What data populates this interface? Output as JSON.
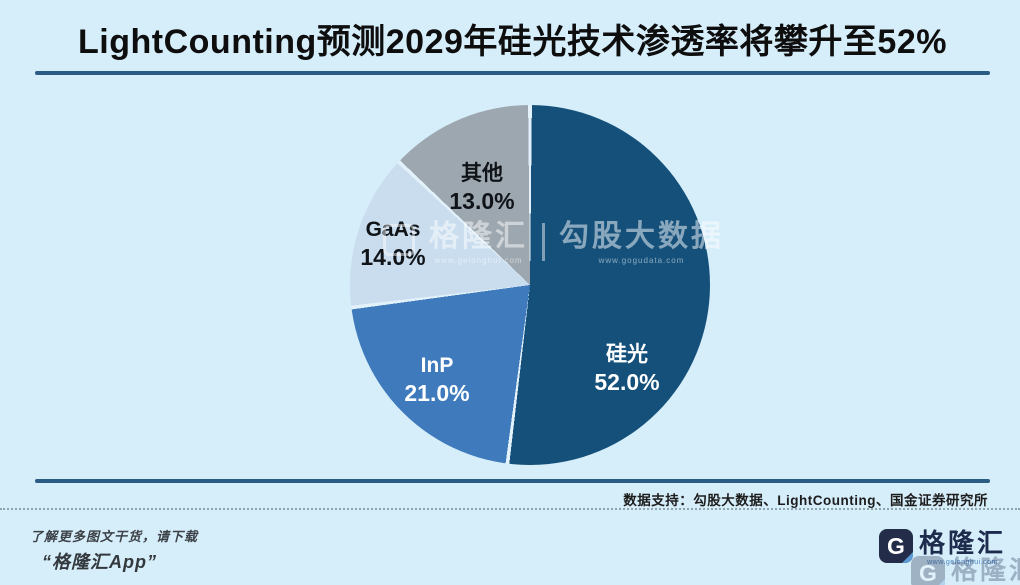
{
  "header": {
    "title": "LightCounting预测2029年硅光技术渗透率将攀升至52%"
  },
  "chart_data": {
    "type": "pie",
    "title": "LightCounting预测2029年硅光技术渗透率将攀升至52%",
    "categories": [
      "硅光",
      "InP",
      "GaAs",
      "其他"
    ],
    "values": [
      52.0,
      21.0,
      14.0,
      13.0
    ],
    "value_labels": [
      "52.0%",
      "21.0%",
      "14.0%",
      "13.0%"
    ],
    "unit": "%",
    "colors": [
      "#14507a",
      "#3e7abc",
      "#c9ddef",
      "#9da7af"
    ],
    "start_angle_deg": 0,
    "direction": "clockwise",
    "legend": "none",
    "label_style": "inside-bold"
  },
  "watermark": {
    "left_text": "格隆汇",
    "left_url": "www.gelonghui.com",
    "right_text": "勾股大数据",
    "right_url": "www.gogudata.com"
  },
  "footer": {
    "credit": "数据支持：勾股大数据、LightCounting、国金证券研究所"
  },
  "promo": {
    "line1": "了解更多图文干货，请下载",
    "line2": "“格隆汇App”"
  },
  "logo": {
    "mark": "G",
    "text": "格隆汇",
    "url": "www.gelonghui.com"
  }
}
